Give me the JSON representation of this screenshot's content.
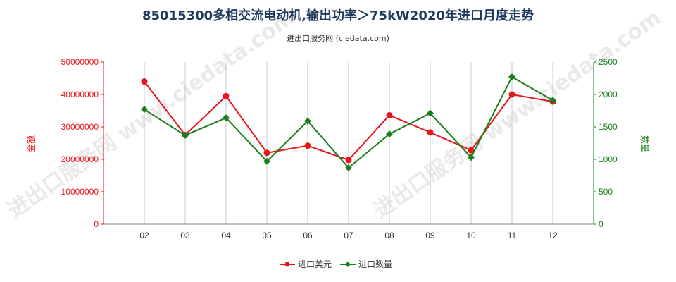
{
  "title": "85015300多相交流电动机,输出功率＞75kW2020年进口月度走势",
  "subtitle": "进出口服务网 (ciedata.com)",
  "watermark": "进出口服务网 www.ciedata.com",
  "colors": {
    "value": "#e8151b",
    "quantity": "#1a7f1a",
    "grid": "#c8c8c8",
    "title": "#1f3a5f"
  },
  "chart_data": {
    "type": "line",
    "categories": [
      "02",
      "03",
      "04",
      "05",
      "06",
      "07",
      "08",
      "09",
      "10",
      "11",
      "12"
    ],
    "series": [
      {
        "name": "进口美元",
        "axis": "left",
        "color": "#e8151b",
        "marker": "circle",
        "values": [
          44000000,
          27500000,
          39500000,
          22000000,
          24200000,
          19800000,
          33600000,
          28300000,
          22800000,
          40000000,
          37800000
        ]
      },
      {
        "name": "进口数量",
        "axis": "right",
        "color": "#1a7f1a",
        "marker": "diamond",
        "values": [
          1770,
          1370,
          1640,
          970,
          1590,
          870,
          1390,
          1710,
          1030,
          2270,
          1910
        ]
      }
    ],
    "y_left": {
      "label": "金额",
      "min": 0,
      "max": 50000000,
      "ticks": [
        "0",
        "10000000",
        "20000000",
        "30000000",
        "40000000",
        "50000000"
      ]
    },
    "y_right": {
      "label": "数量",
      "min": 0,
      "max": 2500,
      "ticks": [
        "0",
        "500",
        "1000",
        "1500",
        "2000",
        "2500"
      ]
    },
    "grid": "vertical",
    "legend": "bottom-center"
  }
}
